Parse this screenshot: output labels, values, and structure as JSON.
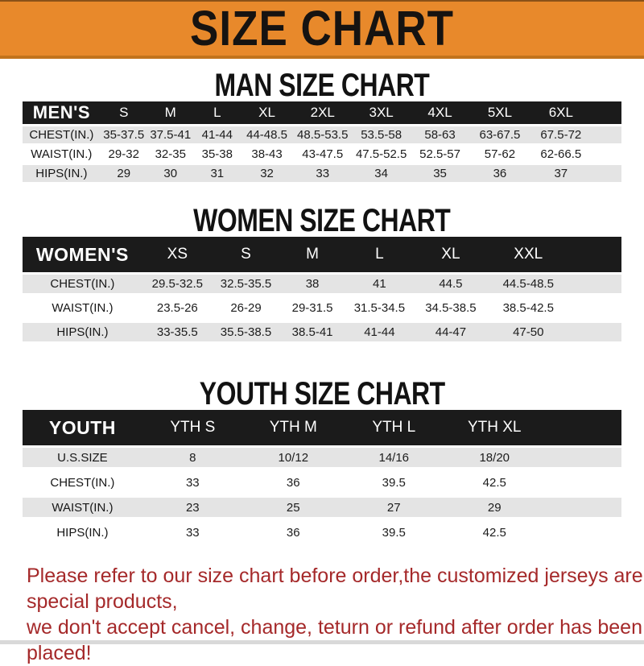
{
  "banner": {
    "title": "SIZE CHART"
  },
  "colors": {
    "banner_orange": "#E8892B",
    "header_bar_black": "#1B1B1B",
    "row_stripe_gray": "#E4E4E4",
    "footer_red": "#A5292A"
  },
  "sections": [
    {
      "heading": "MAN SIZE CHART",
      "table": {
        "label": "MEN'S",
        "columns": [
          "S",
          "M",
          "L",
          "XL",
          "2XL",
          "3XL",
          "4XL",
          "5XL",
          "6XL"
        ],
        "rows": [
          {
            "label": "CHEST(IN.)",
            "values": [
              "35-37.5",
              "37.5-41",
              "41-44",
              "44-48.5",
              "48.5-53.5",
              "53.5-58",
              "58-63",
              "63-67.5",
              "67.5-72"
            ]
          },
          {
            "label": "WAIST(IN.)",
            "values": [
              "29-32",
              "32-35",
              "35-38",
              "38-43",
              "43-47.5",
              "47.5-52.5",
              "52.5-57",
              "57-62",
              "62-66.5"
            ]
          },
          {
            "label": "HIPS(IN.)",
            "values": [
              "29",
              "30",
              "31",
              "32",
              "33",
              "34",
              "35",
              "36",
              "37"
            ]
          }
        ]
      }
    },
    {
      "heading": "WOMEN SIZE CHART",
      "table": {
        "label": "WOMEN'S",
        "columns": [
          "XS",
          "S",
          "M",
          "L",
          "XL",
          "XXL"
        ],
        "rows": [
          {
            "label": "CHEST(IN.)",
            "values": [
              "29.5-32.5",
              "32.5-35.5",
              "38",
              "41",
              "44.5",
              "44.5-48.5"
            ]
          },
          {
            "label": "WAIST(IN.)",
            "values": [
              "23.5-26",
              "26-29",
              "29-31.5",
              "31.5-34.5",
              "34.5-38.5",
              "38.5-42.5"
            ]
          },
          {
            "label": "HIPS(IN.)",
            "values": [
              "33-35.5",
              "35.5-38.5",
              "38.5-41",
              "41-44",
              "44-47",
              "47-50"
            ]
          }
        ]
      }
    },
    {
      "heading": "YOUTH SIZE CHART",
      "table": {
        "label": "YOUTH",
        "columns": [
          "YTH S",
          "YTH M",
          "YTH L",
          "YTH XL"
        ],
        "rows": [
          {
            "label": "U.S.SIZE",
            "values": [
              "8",
              "10/12",
              "14/16",
              "18/20"
            ]
          },
          {
            "label": "CHEST(IN.)",
            "values": [
              "33",
              "36",
              "39.5",
              "42.5"
            ]
          },
          {
            "label": "WAIST(IN.)",
            "values": [
              "23",
              "25",
              "27",
              "29"
            ]
          },
          {
            "label": "HIPS(IN.)",
            "values": [
              "33",
              "36",
              "39.5",
              "42.5"
            ]
          }
        ]
      }
    }
  ],
  "footer": {
    "line1": "Please refer to our size chart before order,the customized jerseys are special products,",
    "line2": "we don't accept cancel, change, teturn or refund after order has been placed!"
  }
}
